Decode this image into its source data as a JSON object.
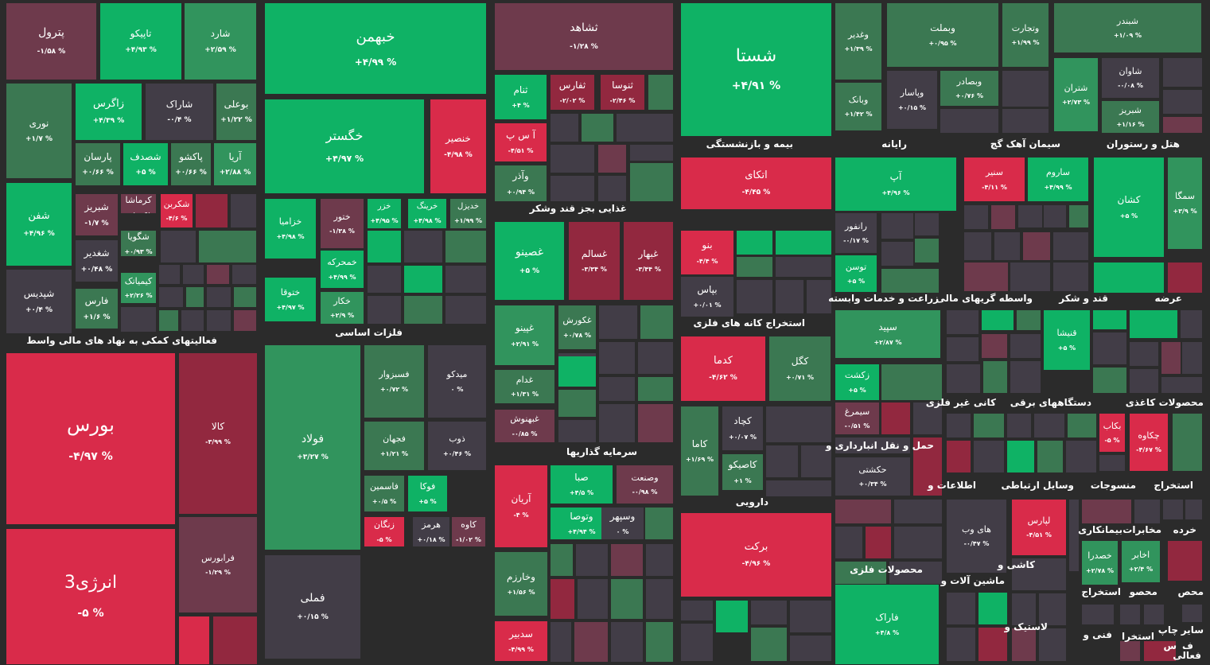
{
  "colors": {
    "background": "#2b2b2b",
    "green_strong": "#0fb265",
    "green_mid": "#31945d",
    "green_weak": "#3b7852",
    "neutral": "#423d47",
    "red_weak": "#6e3a4c",
    "red_mid": "#92283f",
    "red_strong": "#d92b4a"
  },
  "sections": [
    {
      "label": "فعالیتهای کمکی به نهاد های مالی واسط"
    },
    {
      "label": "فلزات اساسی"
    },
    {
      "label": "غذایی بجز قند وشکر"
    },
    {
      "label": "سرمایه گذاریها"
    },
    {
      "label": "بیمه و بازنشستگی"
    },
    {
      "label": "استخراج کانه های فلزی"
    },
    {
      "label": "دارویی"
    },
    {
      "label": "رایانه"
    },
    {
      "label": "سیمان آهک گچ"
    },
    {
      "label": "هتل و رستوران"
    },
    {
      "label": "زراعت و خدمات وابسته"
    },
    {
      "label": "واسطه گریهای مالی"
    },
    {
      "label": "قند و شکر"
    },
    {
      "label": "عرضه"
    },
    {
      "label": "کانی غیر فلزی"
    },
    {
      "label": "دستگاههای برقی"
    },
    {
      "label": "محصولات کاغذی"
    },
    {
      "label": "حمل و نقل انبارداری و"
    },
    {
      "label": "اطلاعات و"
    },
    {
      "label": "وسایل ارتباطی"
    },
    {
      "label": "منسوجات"
    },
    {
      "label": "استخراج"
    },
    {
      "label": "محصولات فلزی"
    },
    {
      "label": "کاشی و"
    },
    {
      "label": "ماشین آلات و"
    },
    {
      "label": "خرده"
    },
    {
      "label": "مخابرات"
    },
    {
      "label": "بیمانکاری"
    },
    {
      "label": "استخراج"
    },
    {
      "label": "محصو"
    },
    {
      "label": "محص"
    },
    {
      "label": "لاستیک و"
    },
    {
      "label": "فنی و"
    },
    {
      "label": "استخرا"
    },
    {
      "label": "چاپ"
    },
    {
      "label": "سایر"
    },
    {
      "label": "فعالی"
    },
    {
      "label": "ف"
    },
    {
      "label": "س"
    }
  ],
  "tiles": [
    {
      "name": "پترول",
      "pct": "-۱/۵۸ %"
    },
    {
      "name": "تاپیکو",
      "pct": "+۴/۹۳ %"
    },
    {
      "name": "شارد",
      "pct": "+۲/۵۹ %"
    },
    {
      "name": "نوری",
      "pct": "+۱/۷ %"
    },
    {
      "name": "زاگرس",
      "pct": "+۴/۳۹ %"
    },
    {
      "name": "شاراک",
      "pct": "-۰/۴ %"
    },
    {
      "name": "بوعلی",
      "pct": "+۱/۲۲ %"
    },
    {
      "name": "پارسان",
      "pct": "+۰/۶۶ %"
    },
    {
      "name": "شصدف",
      "pct": "+۵ %"
    },
    {
      "name": "پاکشو",
      "pct": "+۰/۶۶ %"
    },
    {
      "name": "آریا",
      "pct": "+۲/۸۸ %"
    },
    {
      "name": "شفن",
      "pct": "+۴/۹۶ %"
    },
    {
      "name": "شپدیس",
      "pct": "+۰/۴ %"
    },
    {
      "name": "شبریز",
      "pct": "-۱/۷ %"
    },
    {
      "name": "کرماشا",
      "pct": "-۰/۹۸ %"
    },
    {
      "name": "شکربن",
      "pct": "-۴/۶ %"
    },
    {
      "name": "شغدیر",
      "pct": "+۰/۴۸ %"
    },
    {
      "name": "شگویا",
      "pct": "+۰/۹۳ %"
    },
    {
      "name": "کیمیاتک",
      "pct": "+۲/۲۶ %"
    },
    {
      "name": "فارس",
      "pct": "+۱/۶ %"
    },
    {
      "name": "خبهمن",
      "pct": "+۴/۹۹ %"
    },
    {
      "name": "خگستر",
      "pct": "+۴/۹۷ %"
    },
    {
      "name": "خنصیر",
      "pct": "-۴/۹۸ %"
    },
    {
      "name": "خزامیا",
      "pct": "+۴/۹۸ %"
    },
    {
      "name": "ختور",
      "pct": "-۱/۳۸ %"
    },
    {
      "name": "خزر",
      "pct": "+۴/۹۵ %"
    },
    {
      "name": "خرینگ",
      "pct": "+۴/۹۸ %"
    },
    {
      "name": "خدیزل",
      "pct": "+۱/۹۹ %"
    },
    {
      "name": "خمحرکه",
      "pct": "+۴/۹۹ %"
    },
    {
      "name": "ختوقا",
      "pct": "+۴/۹۷ %"
    },
    {
      "name": "خکار",
      "pct": "+۲/۹ %"
    },
    {
      "name": "فولاد",
      "pct": "+۳/۲۷ %"
    },
    {
      "name": "فسبزوار",
      "pct": "+۰/۷۲ %"
    },
    {
      "name": "میدکو",
      "pct": "۰ %"
    },
    {
      "name": "فجهان",
      "pct": "+۱/۲۱ %"
    },
    {
      "name": "ذوب",
      "pct": "+۰/۴۶ %"
    },
    {
      "name": "فاسمین",
      "pct": "+۰/۵ %"
    },
    {
      "name": "فوکا",
      "pct": "+۵ %"
    },
    {
      "name": "زنگان",
      "pct": "-۵ %"
    },
    {
      "name": "هرمز",
      "pct": "+۰/۱۸ %"
    },
    {
      "name": "کاوه",
      "pct": "-۱/۰۲ %"
    },
    {
      "name": "فملی",
      "pct": "+۰/۱۵ %"
    },
    {
      "name": "ثشاهد",
      "pct": "-۱/۲۸ %"
    },
    {
      "name": "ثنام",
      "pct": "+۴ %"
    },
    {
      "name": "ثفارس",
      "pct": "-۲/۰۲ %"
    },
    {
      "name": "ثنوسا",
      "pct": "-۲/۴۶ %"
    },
    {
      "name": "آ س پ",
      "pct": "-۴/۵۱ %"
    },
    {
      "name": "وآذر",
      "pct": "+۰/۹۴ %"
    },
    {
      "name": "غصینو",
      "pct": "+۵ %"
    },
    {
      "name": "غسالم",
      "pct": "-۳/۳۴ %"
    },
    {
      "name": "غبهار",
      "pct": "-۳/۴۴ %"
    },
    {
      "name": "غپینو",
      "pct": "+۲/۹۱ %"
    },
    {
      "name": "غکورش",
      "pct": "+۰/۷۸ %"
    },
    {
      "name": "غدام",
      "pct": "+۱/۳۱ %"
    },
    {
      "name": "غبهنوش",
      "pct": "-۰/۸۵ %"
    },
    {
      "name": "آریان",
      "pct": "-۴ %"
    },
    {
      "name": "صبا",
      "pct": "+۴/۵ %"
    },
    {
      "name": "وصنعت",
      "pct": "-۰/۹۸ %"
    },
    {
      "name": "وتوصا",
      "pct": "+۴/۹۴ %"
    },
    {
      "name": "وسپهر",
      "pct": "۰ %"
    },
    {
      "name": "وخارزم",
      "pct": "+۱/۵۶ %"
    },
    {
      "name": "سدبیر",
      "pct": "-۴/۹۹ %"
    },
    {
      "name": "شستا",
      "pct": "+۴/۹۱ %"
    },
    {
      "name": "اتکای",
      "pct": "-۴/۴۵ %"
    },
    {
      "name": "بنو",
      "pct": "-۴/۴ %"
    },
    {
      "name": "بپاس",
      "pct": "+۰/۰۱ %"
    },
    {
      "name": "کدما",
      "pct": "-۴/۶۲ %"
    },
    {
      "name": "کگل",
      "pct": "+۰/۷۱ %"
    },
    {
      "name": "کچاد",
      "pct": "+۰/۰۷ %"
    },
    {
      "name": "کاما",
      "pct": "+۱/۶۹ %"
    },
    {
      "name": "کاصیکو",
      "pct": "+۱ %"
    },
    {
      "name": "برکت",
      "pct": "-۴/۹۶ %"
    },
    {
      "name": "وغدیر",
      "pct": "+۱/۳۹ %"
    },
    {
      "name": "وبملت",
      "pct": "+۰/۹۵ %"
    },
    {
      "name": "وتجارت",
      "pct": "+۱/۹۹ %"
    },
    {
      "name": "شبندر",
      "pct": "+۱/۰۹ %"
    },
    {
      "name": "وبانک",
      "pct": "+۱/۴۲ %"
    },
    {
      "name": "وپاسار",
      "pct": "+۰/۱۵ %"
    },
    {
      "name": "وبصادر",
      "pct": "+۰/۷۶ %"
    },
    {
      "name": "شتران",
      "pct": "+۲/۷۳ %"
    },
    {
      "name": "شاوان",
      "pct": "-۰/۰۸ %"
    },
    {
      "name": "شبریز",
      "pct": "+۱/۱۶ %"
    },
    {
      "name": "آپ",
      "pct": "+۴/۹۶ %"
    },
    {
      "name": "سنیر",
      "pct": "-۴/۱۱ %"
    },
    {
      "name": "ساروم",
      "pct": "+۴/۹۹ %"
    },
    {
      "name": "کشان",
      "pct": "+۵ %"
    },
    {
      "name": "سمگا",
      "pct": "+۳/۹ %"
    },
    {
      "name": "رانفور",
      "pct": "-۰/۱۷ %"
    },
    {
      "name": "توسن",
      "pct": "+۵ %"
    },
    {
      "name": "سپید",
      "pct": "+۲/۸۷ %"
    },
    {
      "name": "قنیشا",
      "pct": "+۵ %"
    },
    {
      "name": "زکشت",
      "pct": "+۵ %"
    },
    {
      "name": "سیمرغ",
      "pct": "-۰/۵۱ %"
    },
    {
      "name": "حکشتی",
      "pct": "+۰/۳۴ %"
    },
    {
      "name": "بکاب",
      "pct": "-۵ %"
    },
    {
      "name": "چکاوه",
      "pct": "-۴/۶۷ %"
    },
    {
      "name": "های وب",
      "pct": "-۰/۴۷ %"
    },
    {
      "name": "لپارس",
      "pct": "-۴/۵۱ %"
    },
    {
      "name": "خصدرا",
      "pct": "+۲/۷۸ %"
    },
    {
      "name": "اخابر",
      "pct": "+۲/۴ %"
    },
    {
      "name": "فاراک",
      "pct": "+۴/۸ %"
    },
    {
      "name": "بورس",
      "pct": "-۴/۹۷ %"
    },
    {
      "name": "کالا",
      "pct": "-۳/۹۹ %"
    },
    {
      "name": "فرابورس",
      "pct": "-۱/۲۹ %"
    },
    {
      "name": "انرژی3",
      "pct": "-۵ %"
    }
  ]
}
